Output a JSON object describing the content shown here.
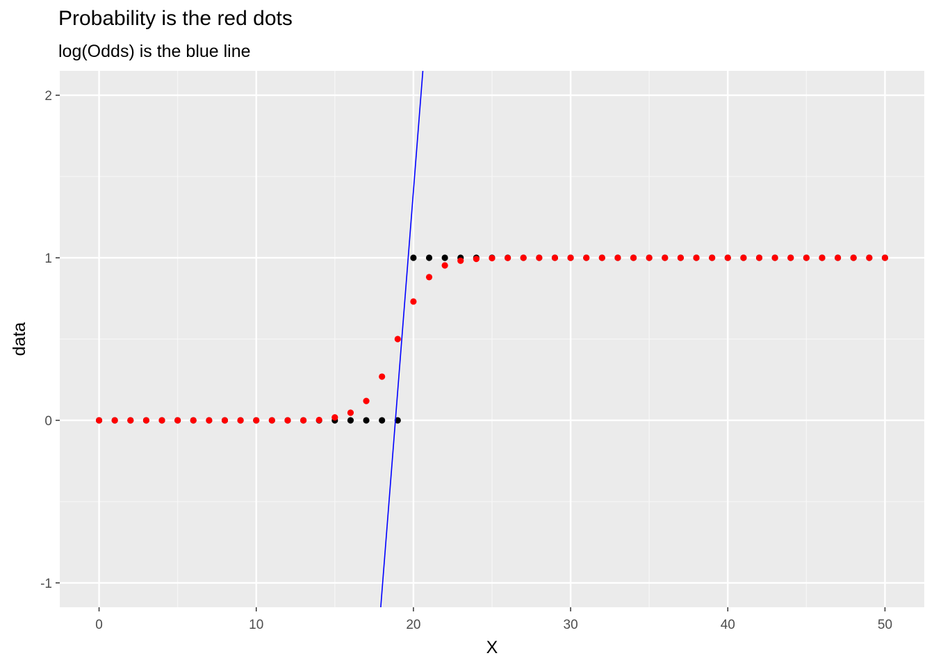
{
  "chart_data": {
    "type": "scatter",
    "title": "Probability is the red dots",
    "subtitle": "log(Odds) is the blue line",
    "xlabel": "X",
    "ylabel": "data",
    "xlim": [
      -2.5,
      52.5
    ],
    "ylim": [
      -1.15,
      2.15
    ],
    "x_ticks": [
      0,
      10,
      20,
      30,
      40,
      50
    ],
    "x_tick_labels": [
      "0",
      "10",
      "20",
      "30",
      "40",
      "50"
    ],
    "y_ticks": [
      -1,
      0,
      1,
      2
    ],
    "y_tick_labels": [
      "-1",
      "0",
      "1",
      "2"
    ],
    "grid": true,
    "series": [
      {
        "color": "#000000",
        "kind": "points",
        "x": [
          0,
          1,
          2,
          3,
          4,
          5,
          6,
          7,
          8,
          9,
          10,
          11,
          12,
          13,
          14,
          15,
          16,
          17,
          18,
          19,
          20,
          21,
          22,
          23,
          24,
          25,
          26,
          27,
          28,
          29,
          30,
          31,
          32,
          33,
          34,
          35,
          36,
          37,
          38,
          39,
          40,
          41,
          42,
          43,
          44,
          45,
          46,
          47,
          48,
          49,
          50
        ],
        "y": [
          0,
          0,
          0,
          0,
          0,
          0,
          0,
          0,
          0,
          0,
          0,
          0,
          0,
          0,
          0,
          0,
          0,
          0,
          0,
          0,
          1,
          1,
          1,
          1,
          1,
          1,
          1,
          1,
          1,
          1,
          1,
          1,
          1,
          1,
          1,
          1,
          1,
          1,
          1,
          1,
          1,
          1,
          1,
          1,
          1,
          1,
          1,
          1,
          1,
          1,
          1
        ]
      },
      {
        "color": "#ff0000",
        "kind": "points",
        "x": [
          0,
          1,
          2,
          3,
          4,
          5,
          6,
          7,
          8,
          9,
          10,
          11,
          12,
          13,
          14,
          15,
          16,
          17,
          18,
          19,
          20,
          21,
          22,
          23,
          24,
          25,
          26,
          27,
          28,
          29,
          30,
          31,
          32,
          33,
          34,
          35,
          36,
          37,
          38,
          39,
          40,
          41,
          42,
          43,
          44,
          45,
          46,
          47,
          48,
          49,
          50
        ],
        "y": [
          0,
          0,
          0,
          0,
          0,
          0,
          0,
          0,
          0,
          0,
          0,
          0,
          0,
          0,
          0.002,
          0.018,
          0.047,
          0.119,
          0.269,
          0.5,
          0.731,
          0.881,
          0.953,
          0.982,
          0.993,
          0.998,
          0.999,
          1,
          1,
          1,
          1,
          1,
          1,
          1,
          1,
          1,
          1,
          1,
          1,
          1,
          1,
          1,
          1,
          1,
          1,
          1,
          1,
          1,
          1,
          1,
          1
        ]
      },
      {
        "color": "#0000ff",
        "kind": "line",
        "x": [
          17.92,
          20.6
        ],
        "y": [
          -1.15,
          2.15
        ]
      }
    ]
  }
}
